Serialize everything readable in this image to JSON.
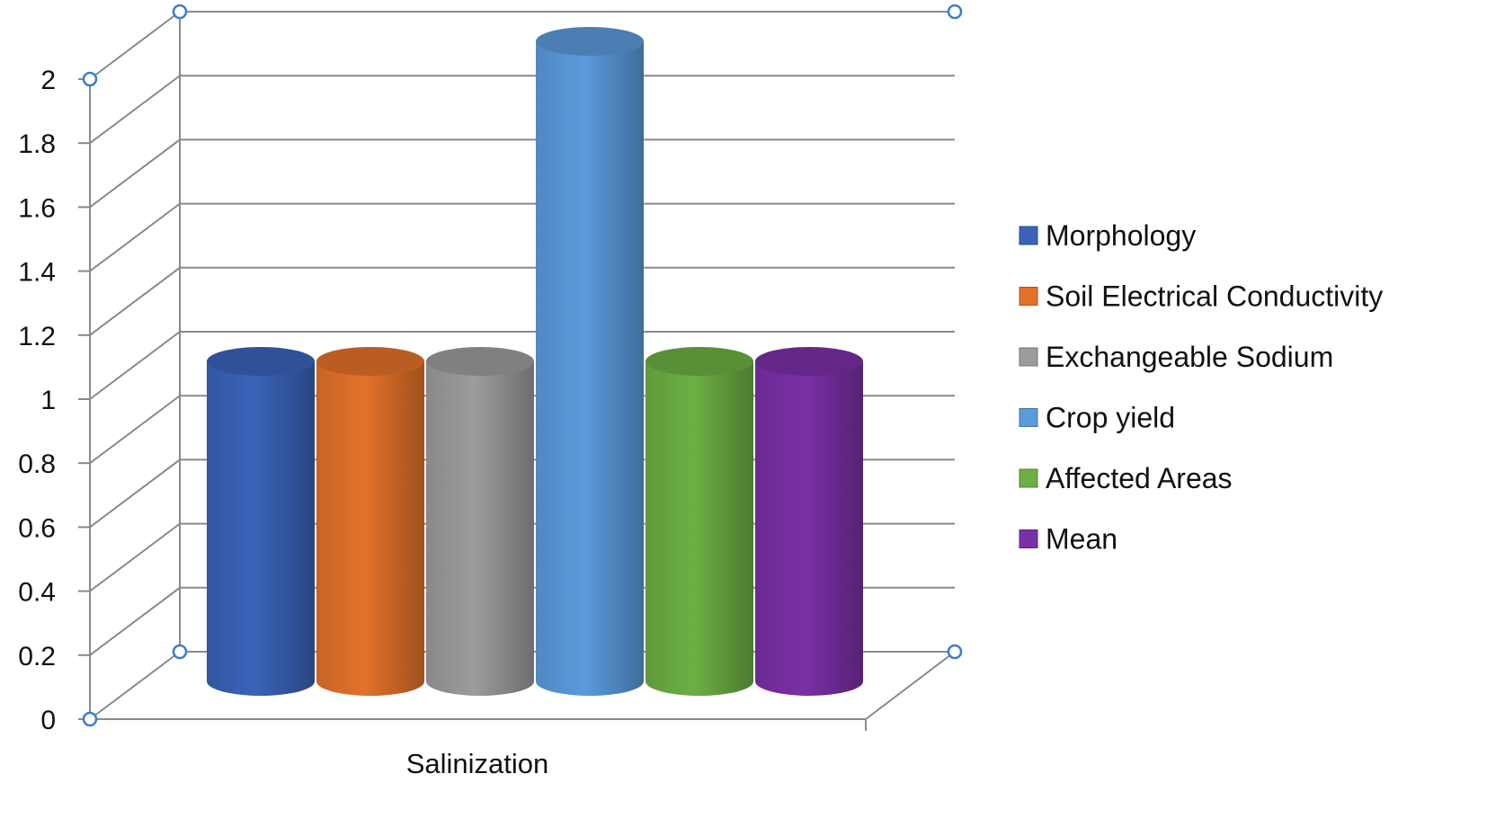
{
  "chart_data": {
    "type": "bar",
    "categories": [
      "Salinization"
    ],
    "series": [
      {
        "name": "Morphology",
        "values": [
          1
        ],
        "color": "#3a63b8"
      },
      {
        "name": "Soil Electrical Conductivity",
        "values": [
          1
        ],
        "color": "#e37229"
      },
      {
        "name": "Exchangeable Sodium",
        "values": [
          1
        ],
        "color": "#9c9c9c"
      },
      {
        "name": "Crop yield",
        "values": [
          2
        ],
        "color": "#5b9bdc"
      },
      {
        "name": "Affected Areas",
        "values": [
          1
        ],
        "color": "#6caf43"
      },
      {
        "name": "Mean",
        "values": [
          1
        ],
        "color": "#7a30a6"
      }
    ],
    "yticks": [
      "0",
      "0.2",
      "0.4",
      "0.6",
      "0.8",
      "1",
      "1.2",
      "1.4",
      "1.6",
      "1.8",
      "2"
    ],
    "ylim": [
      0,
      2
    ],
    "grid": true,
    "legend_position": "right",
    "bar_shape": "3d-cylinder",
    "title": "",
    "xlabel": "",
    "ylabel": ""
  }
}
